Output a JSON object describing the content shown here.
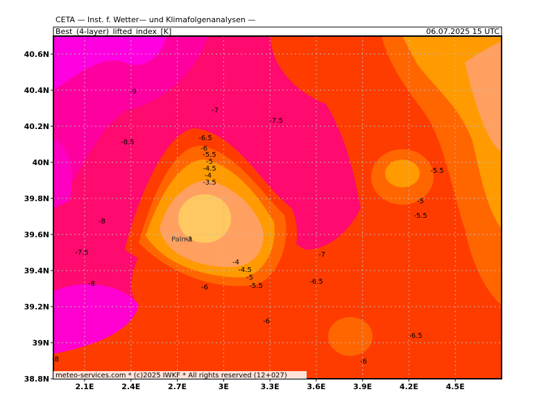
{
  "header": {
    "institute": "CETA — Inst. f. Wetter— und Klimafolgenanalysen —",
    "field": "Best_(4-layer)_lifted_index_[K]",
    "valid_time": "06.07.2025 15 UTC"
  },
  "map": {
    "lonlim": [
      1.898,
      4.8
    ],
    "latlim": [
      38.8,
      40.7
    ],
    "lon_ticks": [
      {
        "value": 2.1,
        "label": "2.1E"
      },
      {
        "value": 2.4,
        "label": "2.4E"
      },
      {
        "value": 2.7,
        "label": "2.7E"
      },
      {
        "value": 3.0,
        "label": "3E"
      },
      {
        "value": 3.3,
        "label": "3.3E"
      },
      {
        "value": 3.6,
        "label": "3.6E"
      },
      {
        "value": 3.9,
        "label": "3.9E"
      },
      {
        "value": 4.2,
        "label": "4.2E"
      },
      {
        "value": 4.5,
        "label": "4.5E"
      }
    ],
    "lat_ticks": [
      {
        "value": 38.8,
        "label": "38.8N"
      },
      {
        "value": 39.0,
        "label": "39N"
      },
      {
        "value": 39.2,
        "label": "39.2N"
      },
      {
        "value": 39.4,
        "label": "39.4N"
      },
      {
        "value": 39.6,
        "label": "39.6N"
      },
      {
        "value": 39.8,
        "label": "39.8N"
      },
      {
        "value": 40.0,
        "label": "40N"
      },
      {
        "value": 40.2,
        "label": "40.2N"
      },
      {
        "value": 40.4,
        "label": "40.4N"
      },
      {
        "value": 40.6,
        "label": "40.6N"
      }
    ],
    "place": "Palma",
    "contour_labels": [
      "-9",
      "-8.5",
      "-7",
      "-7.5",
      "-6.5",
      "-6",
      "-5.5",
      "-5",
      "-4.5",
      "-4",
      "-3.5",
      "-8",
      "-3",
      "-7.5",
      "-7",
      "-4",
      "-4.5",
      "-5",
      "-5.5",
      "-6",
      "-8",
      "-6.5",
      "-6",
      "-6.5",
      "-6",
      "-8",
      "-5.5",
      "-5",
      "-5.5"
    ]
  },
  "footer": "meteo-services.com * (c)2025 IWKF * All rights reserved (12+027)"
}
